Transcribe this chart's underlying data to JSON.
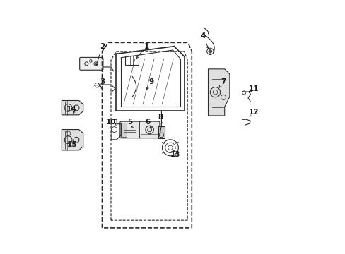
{
  "bg_color": "#ffffff",
  "line_color": "#2a2a2a",
  "label_color": "#1a1a1a",
  "figsize": [
    4.89,
    3.6
  ],
  "dpi": 100,
  "label_arrows": {
    "1": {
      "lpos": [
        0.395,
        0.82
      ],
      "apos": [
        0.34,
        0.755
      ]
    },
    "2": {
      "lpos": [
        0.22,
        0.82
      ],
      "apos": [
        0.19,
        0.722
      ]
    },
    "3": {
      "lpos": [
        0.22,
        0.68
      ],
      "apos": [
        0.215,
        0.64
      ]
    },
    "4": {
      "lpos": [
        0.62,
        0.86
      ],
      "apos": [
        0.65,
        0.79
      ]
    },
    "5": {
      "lpos": [
        0.33,
        0.52
      ],
      "apos": [
        0.34,
        0.495
      ]
    },
    "6": {
      "lpos": [
        0.4,
        0.52
      ],
      "apos": [
        0.415,
        0.495
      ]
    },
    "7": {
      "lpos": [
        0.7,
        0.68
      ],
      "apos": [
        0.675,
        0.645
      ]
    },
    "8": {
      "lpos": [
        0.45,
        0.54
      ],
      "apos": [
        0.458,
        0.51
      ]
    },
    "9": {
      "lpos": [
        0.415,
        0.68
      ],
      "apos": [
        0.385,
        0.63
      ]
    },
    "10": {
      "lpos": [
        0.255,
        0.52
      ],
      "apos": [
        0.278,
        0.51
      ]
    },
    "11": {
      "lpos": [
        0.82,
        0.65
      ],
      "apos": [
        0.79,
        0.635
      ]
    },
    "12": {
      "lpos": [
        0.82,
        0.56
      ],
      "apos": [
        0.795,
        0.53
      ]
    },
    "13": {
      "lpos": [
        0.51,
        0.39
      ],
      "apos": [
        0.495,
        0.42
      ]
    },
    "14": {
      "lpos": [
        0.1,
        0.57
      ],
      "apos": [
        0.11,
        0.555
      ]
    },
    "15": {
      "lpos": [
        0.1,
        0.43
      ],
      "apos": [
        0.11,
        0.445
      ]
    }
  }
}
